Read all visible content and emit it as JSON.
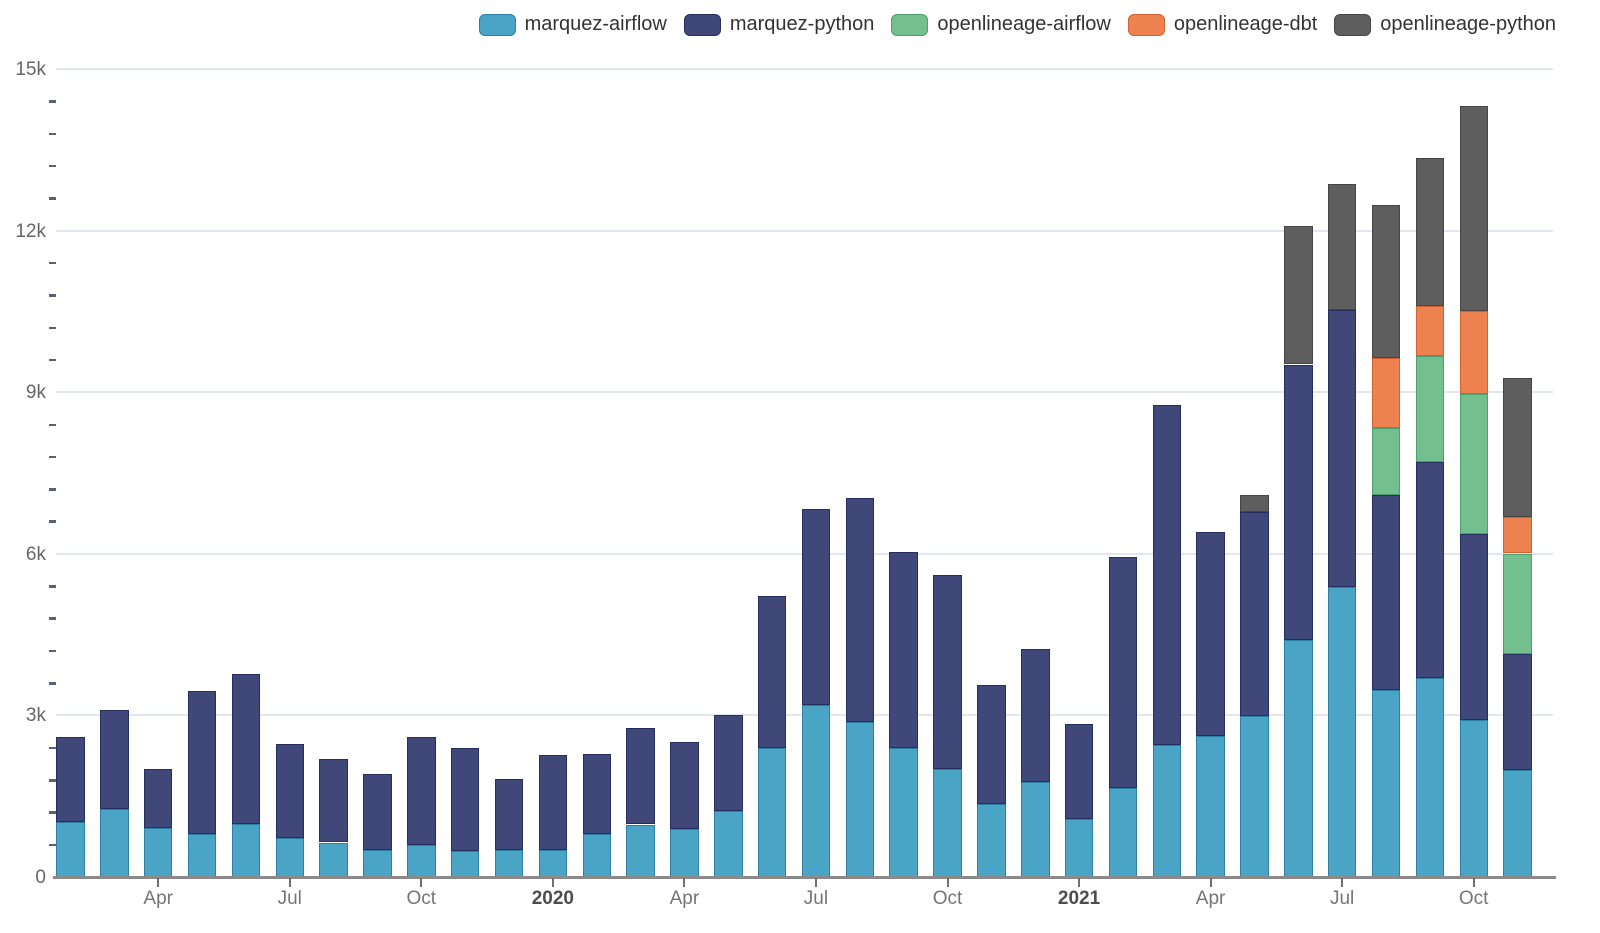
{
  "chart_data": {
    "type": "bar",
    "stacked": true,
    "title": "",
    "xlabel": "",
    "ylabel": "",
    "ylim": [
      0,
      15000
    ],
    "grid": true,
    "legend_position": "top-right",
    "background_color": "#ffffff",
    "gridline_color": "#e2e6f0",
    "axis_line_color": "#8a8a8a",
    "x": [
      "2019-02",
      "2019-03",
      "2019-04",
      "2019-05",
      "2019-06",
      "2019-07",
      "2019-08",
      "2019-09",
      "2019-10",
      "2019-11",
      "2019-12",
      "2020-01",
      "2020-02",
      "2020-03",
      "2020-04",
      "2020-05",
      "2020-06",
      "2020-07",
      "2020-08",
      "2020-09",
      "2020-10",
      "2020-11",
      "2020-12",
      "2021-01",
      "2021-02",
      "2021-03",
      "2021-04",
      "2021-05",
      "2021-06",
      "2021-07",
      "2021-08",
      "2021-09",
      "2021-10",
      "2021-11"
    ],
    "series": [
      {
        "name": "marquez-airflow",
        "color": "#4aa4c6",
        "border_color": "#2e7fa3",
        "values": [
          1015,
          1270,
          905,
          795,
          980,
          720,
          640,
          505,
          590,
          480,
          505,
          510,
          800,
          975,
          895,
          1225,
          2390,
          3185,
          2870,
          2395,
          2010,
          1350,
          1765,
          1070,
          1645,
          2445,
          2615,
          2990,
          4405,
          5390,
          3470,
          3690,
          2915,
          1980
        ]
      },
      {
        "name": "marquez-python",
        "color": "#3f4878",
        "border_color": "#252e5c",
        "values": [
          1580,
          1825,
          1105,
          2655,
          2795,
          1755,
          1545,
          1410,
          2010,
          1915,
          1315,
          1755,
          1490,
          1790,
          1615,
          1775,
          2825,
          3655,
          4170,
          3640,
          3590,
          2210,
          2475,
          1780,
          4295,
          6310,
          3795,
          3790,
          5110,
          5135,
          3615,
          4015,
          3460,
          2155
        ]
      },
      {
        "name": "openlineage-airflow",
        "color": "#73bf8e",
        "border_color": "#4f9e6f",
        "values": [
          0,
          0,
          0,
          0,
          0,
          0,
          0,
          0,
          0,
          0,
          0,
          0,
          0,
          0,
          0,
          0,
          0,
          0,
          0,
          0,
          0,
          0,
          0,
          0,
          0,
          0,
          0,
          0,
          0,
          0,
          1255,
          1965,
          2590,
          1870
        ]
      },
      {
        "name": "openlineage-dbt",
        "color": "#ee8150",
        "border_color": "#d2622f",
        "values": [
          0,
          0,
          0,
          0,
          0,
          0,
          0,
          0,
          0,
          0,
          0,
          0,
          0,
          0,
          0,
          0,
          0,
          0,
          0,
          0,
          0,
          0,
          0,
          0,
          0,
          0,
          0,
          0,
          0,
          0,
          1300,
          935,
          1535,
          680
        ]
      },
      {
        "name": "openlineage-python",
        "color": "#5e5e5e",
        "border_color": "#454545",
        "values": [
          0,
          0,
          0,
          0,
          0,
          0,
          0,
          0,
          0,
          0,
          0,
          0,
          0,
          0,
          0,
          0,
          0,
          0,
          0,
          0,
          0,
          0,
          0,
          0,
          0,
          0,
          0,
          320,
          2570,
          2335,
          2845,
          2745,
          3820,
          2575
        ]
      }
    ],
    "y_axis": {
      "ticks": [
        {
          "label": "0",
          "value": 0
        },
        {
          "label": "3k",
          "value": 3000
        },
        {
          "label": "6k",
          "value": 6000
        },
        {
          "label": "9k",
          "value": 9000
        },
        {
          "label": "12k",
          "value": 12000
        },
        {
          "label": "15k",
          "value": 15000
        }
      ],
      "minor_step": 600
    },
    "x_axis": {
      "ticks": [
        {
          "bar_index": 2,
          "label": "Apr",
          "bold": false
        },
        {
          "bar_index": 5,
          "label": "Jul",
          "bold": false
        },
        {
          "bar_index": 8,
          "label": "Oct",
          "bold": false
        },
        {
          "bar_index": 11,
          "label": "2020",
          "bold": true
        },
        {
          "bar_index": 14,
          "label": "Apr",
          "bold": false
        },
        {
          "bar_index": 17,
          "label": "Jul",
          "bold": false
        },
        {
          "bar_index": 20,
          "label": "Oct",
          "bold": false
        },
        {
          "bar_index": 23,
          "label": "2021",
          "bold": true
        },
        {
          "bar_index": 26,
          "label": "Apr",
          "bold": false
        },
        {
          "bar_index": 29,
          "label": "Jul",
          "bold": false
        },
        {
          "bar_index": 32,
          "label": "Oct",
          "bold": false
        }
      ]
    }
  }
}
